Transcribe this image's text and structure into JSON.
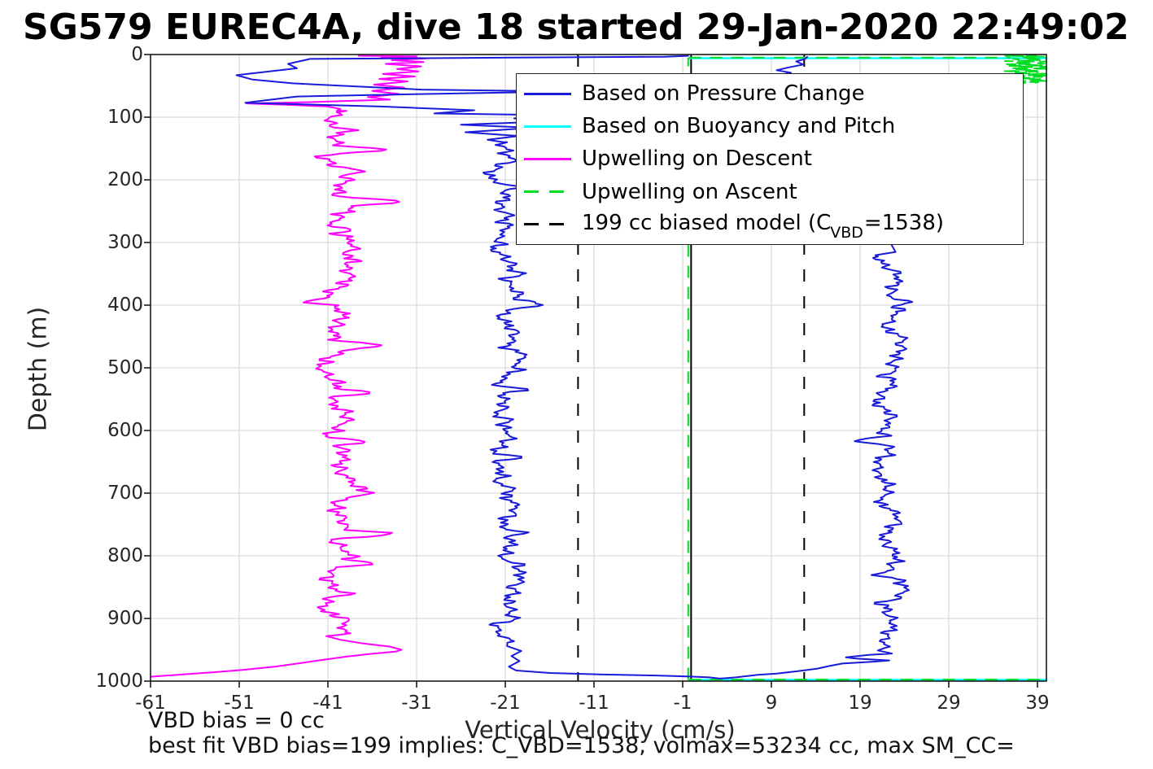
{
  "title": "SG579 EUREC4A, dive 18 started 29-Jan-2020 22:49:02",
  "axes": {
    "xlabel": "Vertical Velocity (cm/s)",
    "ylabel": "Depth (m)",
    "xticks": [
      -61,
      -51,
      -41,
      -31,
      -21,
      -11,
      -1,
      9,
      19,
      29,
      39
    ],
    "yticks": [
      0,
      100,
      200,
      300,
      400,
      500,
      600,
      700,
      800,
      900,
      1000
    ]
  },
  "annotations": {
    "vbd_bias": "VBD bias = 0 cc",
    "best_fit": "best fit VBD bias=199 implies: C_VBD=1538, volmax=53234 cc, max SM_CC="
  },
  "legend": {
    "entries": [
      {
        "label_pre": "Based on Pressure Change",
        "label_sub": "",
        "label_post": "",
        "color": "#1a1ad9",
        "dash": false
      },
      {
        "label_pre": "Based on Buoyancy and Pitch",
        "label_sub": "",
        "label_post": "",
        "color": "#00ffff",
        "dash": false
      },
      {
        "label_pre": "Upwelling on Descent",
        "label_sub": "",
        "label_post": "",
        "color": "#ff00ff",
        "dash": false
      },
      {
        "label_pre": "Upwelling on Ascent",
        "label_sub": "",
        "label_post": "",
        "color": "#00dd22",
        "dash": true
      },
      {
        "label_pre": "199 cc biased model (C",
        "label_sub": "VBD",
        "label_post": "=1538)",
        "color": "#000000",
        "dash": true
      }
    ]
  },
  "chart_data": {
    "type": "line",
    "title": "SG579 EUREC4A, dive 18 started 29-Jan-2020 22:49:02",
    "xlabel": "Vertical Velocity (cm/s)",
    "ylabel": "Depth (m)",
    "xlim": [
      -61,
      40.2
    ],
    "ylim": [
      0,
      1000
    ],
    "y_reversed": true,
    "grid": true,
    "grid_color": "#dcdcdc",
    "legend_position": "upper right",
    "reference_lines": [
      {
        "name": "zero-line",
        "orientation": "vertical",
        "x": -0.05,
        "style": "solid",
        "color": "#000000"
      },
      {
        "name": "biased-model-descent",
        "orientation": "vertical",
        "x": -12.8,
        "style": "dashed",
        "color": "#000000"
      },
      {
        "name": "biased-model-ascent",
        "orientation": "vertical",
        "x": 12.7,
        "style": "dashed",
        "color": "#000000"
      }
    ],
    "series": [
      {
        "name": "Upwelling on Ascent (vertical reference)",
        "color": "#00dd22",
        "dash": true,
        "width": 2,
        "segments": [
          {
            "pts": [
              [
                -0.38,
                998
              ],
              [
                -0.38,
                5.2
              ]
            ]
          }
        ]
      },
      {
        "name": "Based on Buoyancy and Pitch (surface)",
        "color": "#00ffff",
        "dash": false,
        "width": 2.4,
        "segments": [
          {
            "pts": [
              [
                -0.3,
                5.8
              ],
              [
                40.2,
                5.8
              ]
            ]
          }
        ]
      },
      {
        "name": "Based on Buoyancy and Pitch (bottom)",
        "color": "#00ffff",
        "dash": false,
        "width": 2.4,
        "segments": [
          {
            "pts": [
              [
                -0.3,
                998
              ],
              [
                40.2,
                998
              ]
            ]
          }
        ]
      },
      {
        "name": "Upwelling on Ascent (surface)",
        "color": "#00dd22",
        "dash": true,
        "width": 2,
        "segments": [
          {
            "pts": [
              [
                -0.3,
                5.0
              ],
              [
                36.0,
                5.0
              ]
            ]
          }
        ]
      },
      {
        "name": "Upwelling on Ascent (bottom)",
        "color": "#00dd22",
        "dash": true,
        "width": 2,
        "segments": [
          {
            "pts": [
              [
                -0.3,
                997.5
              ],
              [
                40.2,
                997.5
              ]
            ]
          }
        ]
      },
      {
        "name": "Upwelling on Ascent (near-surface profile)",
        "color": "#00dd22",
        "dash": true,
        "width": 2,
        "segments": [
          {
            "band": {
              "from": 0,
              "to": 46,
              "step": 0.7,
              "mean": 37.9,
              "amp": 0,
              "zig": true,
              "spikes": []
            }
          },
          {
            "pts": [
              [
                36.8,
                46
              ]
            ]
          }
        ]
      },
      {
        "name": "Upwelling on Descent",
        "color": "#ff00ff",
        "dash": false,
        "width": 2,
        "segments": [
          {
            "pts": [
              [
                -37.6,
                2
              ],
              [
                -31,
                3
              ],
              [
                -35,
                4
              ],
              [
                -29.6,
                6
              ],
              [
                -33.8,
                9
              ],
              [
                -30.2,
                12
              ],
              [
                -34.5,
                15
              ],
              [
                -30.5,
                19
              ],
              [
                -33.2,
                23
              ],
              [
                -30.8,
                27
              ],
              [
                -34.8,
                31
              ],
              [
                -31.2,
                35
              ],
              [
                -35.2,
                39
              ],
              [
                -32,
                43
              ],
              [
                -35.8,
                48
              ],
              [
                -32.4,
                53
              ],
              [
                -36,
                58
              ],
              [
                -33,
                63
              ],
              [
                -36.5,
                68
              ],
              [
                -34,
                72
              ],
              [
                -43,
                76
              ],
              [
                -50.2,
                78
              ],
              [
                -46,
                80
              ],
              [
                -41,
                83
              ],
              [
                -39.6,
                87
              ],
              [
                -40,
                90
              ]
            ]
          },
          {
            "band": {
              "from": 90,
              "to": 930,
              "step": 2.2,
              "mean": -39.8,
              "amp": 1.05,
              "seed": 3,
              "spikes": [
                [
                  120,
                  2.5,
                  4
                ],
                [
                  152,
                  6.8,
                  5
                ],
                [
                  185,
                  2.0,
                  4
                ],
                [
                  235,
                  6.5,
                  5
                ],
                [
                  280,
                  1.6,
                  4
                ],
                [
                  330,
                  1.8,
                  4
                ],
                [
                  395,
                  -2.3,
                  5
                ],
                [
                  465,
                  4.3,
                  5
                ],
                [
                  540,
                  3.8,
                  5
                ],
                [
                  618,
                  4.0,
                  4
                ],
                [
                  700,
                  2.6,
                  4
                ],
                [
                  765,
                  6.6,
                  5
                ],
                [
                  812,
                  3.0,
                  4
                ],
                [
                  860,
                  1.5,
                  4
                ],
                [
                  900,
                  1.8,
                  4
                ]
              ]
            }
          },
          {
            "pts": [
              [
                -39.6,
                934
              ],
              [
                -37,
                940
              ],
              [
                -34,
                945
              ],
              [
                -32.7,
                950
              ],
              [
                -33.4,
                953
              ],
              [
                -36.5,
                957
              ],
              [
                -39,
                961
              ],
              [
                -41.5,
                966
              ],
              [
                -44,
                971
              ],
              [
                -47,
                977
              ],
              [
                -50.5,
                982
              ],
              [
                -54,
                986
              ],
              [
                -57.5,
                989.5
              ],
              [
                -61,
                993
              ]
            ]
          }
        ]
      },
      {
        "name": "Based on Pressure Change",
        "color": "#1a1ad9",
        "dash": false,
        "width": 2,
        "segments": [
          {
            "pts": [
              [
                -0.3,
                2
              ],
              [
                -3,
                3.5
              ],
              [
                -20,
                5
              ],
              [
                -43,
                7
              ],
              [
                -45.5,
                15
              ],
              [
                -44.5,
                22
              ],
              [
                -51.3,
                33
              ],
              [
                -49.5,
                40
              ],
              [
                -45,
                46
              ],
              [
                -30.5,
                56
              ],
              [
                -14,
                59
              ],
              [
                -30,
                63
              ],
              [
                -44.5,
                67
              ],
              [
                -50.3,
                77
              ],
              [
                -35,
                83
              ],
              [
                -24.5,
                89
              ],
              [
                -29,
                94
              ],
              [
                -13.8,
                97
              ],
              [
                -20,
                102
              ],
              [
                -16.5,
                107
              ],
              [
                -26,
                112
              ],
              [
                -18,
                117
              ],
              [
                -25.5,
                124
              ],
              [
                -19.5,
                130
              ],
              [
                -23,
                136
              ],
              [
                -21.2,
                140
              ]
            ]
          },
          {
            "band": {
              "from": 140,
              "to": 940,
              "step": 2.2,
              "mean": -21.0,
              "amp": 0.9,
              "seed": 1,
              "spikes": [
                [
                  170,
                  1.2,
                  4
                ],
                [
                  210,
                  1.8,
                  5
                ],
                [
                  255,
                  1.5,
                  4
                ],
                [
                  300,
                  1.2,
                  4
                ],
                [
                  350,
                  1.5,
                  5
                ],
                [
                  400,
                  3.3,
                  6
                ],
                [
                  480,
                  2.2,
                  5
                ],
                [
                  535,
                  3.0,
                  5
                ],
                [
                  585,
                  1.8,
                  4
                ],
                [
                  643,
                  3.0,
                  5
                ],
                [
                  694,
                  2.3,
                  5
                ],
                [
                  762,
                  2.0,
                  4
                ],
                [
                  815,
                  1.5,
                  4
                ],
                [
                  860,
                  1.2,
                  4
                ],
                [
                  900,
                  1.6,
                  4
                ]
              ]
            }
          },
          {
            "pts": [
              [
                -20.8,
                944
              ],
              [
                -19.2,
                952
              ],
              [
                -20.3,
                960
              ],
              [
                -19.4,
                968
              ],
              [
                -20.6,
                977
              ],
              [
                -19.8,
                983
              ],
              [
                -16,
                987
              ],
              [
                -10,
                989.5
              ],
              [
                -4,
                991
              ],
              [
                -0.5,
                992.5
              ],
              [
                2,
                994
              ],
              [
                3.2,
                996
              ],
              [
                5,
                994
              ],
              [
                7.5,
                990
              ],
              [
                9.6,
                988
              ],
              [
                12,
                984
              ],
              [
                14.2,
                980
              ],
              [
                15.5,
                976
              ],
              [
                17,
                972
              ],
              [
                20.5,
                969
              ],
              [
                22.3,
                967
              ],
              [
                18.5,
                964
              ],
              [
                17.4,
                962
              ],
              [
                20,
                958
              ],
              [
                22.6,
                956
              ],
              [
                21,
                951
              ],
              [
                21.8,
                947
              ]
            ]
          },
          {
            "band": {
              "from": 945,
              "to": 320,
              "step": 2.2,
              "mean": 22.3,
              "amp": 0.85,
              "seed": 7,
              "spikes": [
                [
                  875,
                  -1.2,
                  4
                ],
                [
                  830,
                  -1.8,
                  5
                ],
                [
                  715,
                  -1.0,
                  4
                ],
                [
                  660,
                  1.0,
                  4
                ],
                [
                  617,
                  -3.4,
                  5
                ],
                [
                  560,
                  -1.2,
                  3
                ],
                [
                  514,
                  -2.2,
                  4
                ],
                [
                  450,
                  1.4,
                  5
                ],
                [
                  395,
                  1.5,
                  4
                ]
              ]
            }
          },
          {
            "pts": [
              [
                23,
                315
              ],
              [
                22,
                290
              ],
              [
                21,
                250
              ],
              [
                19.5,
                200
              ],
              [
                17,
                150
              ],
              [
                14.5,
                100
              ],
              [
                13.8,
                60
              ],
              [
                13.2,
                40
              ],
              [
                9.8,
                33
              ],
              [
                11.2,
                29
              ],
              [
                9.6,
                25
              ],
              [
                10.8,
                21
              ],
              [
                12.6,
                16
              ],
              [
                11.8,
                11
              ],
              [
                12.8,
                7
              ],
              [
                13.1,
                3
              ]
            ]
          }
        ]
      }
    ]
  },
  "colors": {
    "grid": "#dcdcdc",
    "spine": "#1a1a1a",
    "tick_text": "#262626"
  }
}
